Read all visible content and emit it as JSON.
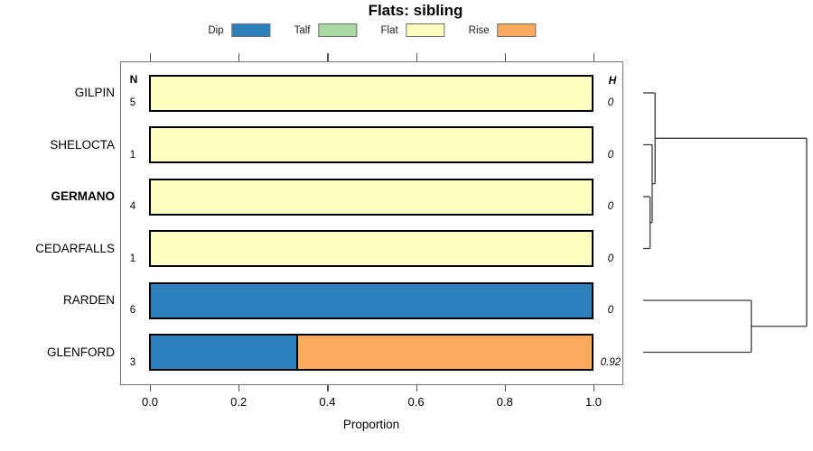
{
  "title": "Flats: sibling",
  "xlabel": "Proportion",
  "columns": {
    "n_header": "N",
    "h_header": "H"
  },
  "legend": [
    {
      "label": "Dip",
      "color": "#2E80BD"
    },
    {
      "label": "Talf",
      "color": "#ABD9A2"
    },
    {
      "label": "Flat",
      "color": "#FFFFC2"
    },
    {
      "label": "Rise",
      "color": "#FBA95C"
    }
  ],
  "chart_data": {
    "type": "bar",
    "orientation": "horizontal",
    "stacked": true,
    "title": "Flats: sibling",
    "xlabel": "Proportion",
    "xlim": [
      0,
      1
    ],
    "x_ticks": [
      "0.0",
      "0.2",
      "0.4",
      "0.6",
      "0.8",
      "1.0"
    ],
    "x_tick_values": [
      0,
      0.2,
      0.4,
      0.6,
      0.8,
      1.0
    ],
    "legend_categories": [
      "Dip",
      "Talf",
      "Flat",
      "Rise"
    ],
    "rows": [
      {
        "label": "GILPIN",
        "bold": false,
        "n": 5,
        "h": "0",
        "segments": [
          {
            "category": "Flat",
            "value": 1
          }
        ]
      },
      {
        "label": "SHELOCTA",
        "bold": false,
        "n": 1,
        "h": "0",
        "segments": [
          {
            "category": "Flat",
            "value": 1
          }
        ]
      },
      {
        "label": "GERMANO",
        "bold": true,
        "n": 4,
        "h": "0",
        "segments": [
          {
            "category": "Flat",
            "value": 1
          }
        ]
      },
      {
        "label": "CEDARFALLS",
        "bold": false,
        "n": 1,
        "h": "0",
        "segments": [
          {
            "category": "Flat",
            "value": 1
          }
        ]
      },
      {
        "label": "RARDEN",
        "bold": false,
        "n": 6,
        "h": "0",
        "segments": [
          {
            "category": "Dip",
            "value": 1
          }
        ]
      },
      {
        "label": "GLENFORD",
        "bold": false,
        "n": 3,
        "h": "0.92",
        "segments": [
          {
            "category": "Dip",
            "value": 0.333
          },
          {
            "category": "Rise",
            "value": 0.667
          }
        ]
      }
    ],
    "dendrogram": {
      "leaf_order": [
        "GILPIN",
        "SHELOCTA",
        "GERMANO",
        "CEDARFALLS",
        "RARDEN",
        "GLENFORD"
      ],
      "merges": [
        {
          "id": "m1",
          "children": [
            "GERMANO",
            "CEDARFALLS"
          ],
          "height": 0.042
        },
        {
          "id": "m2",
          "children": [
            "SHELOCTA",
            "m1"
          ],
          "height": 0.055
        },
        {
          "id": "m3",
          "children": [
            "GILPIN",
            "m2"
          ],
          "height": 0.073
        },
        {
          "id": "m4",
          "children": [
            "RARDEN",
            "GLENFORD"
          ],
          "height": 0.661
        },
        {
          "id": "m5",
          "children": [
            "m3",
            "m4"
          ],
          "height": 1.0
        }
      ]
    }
  }
}
